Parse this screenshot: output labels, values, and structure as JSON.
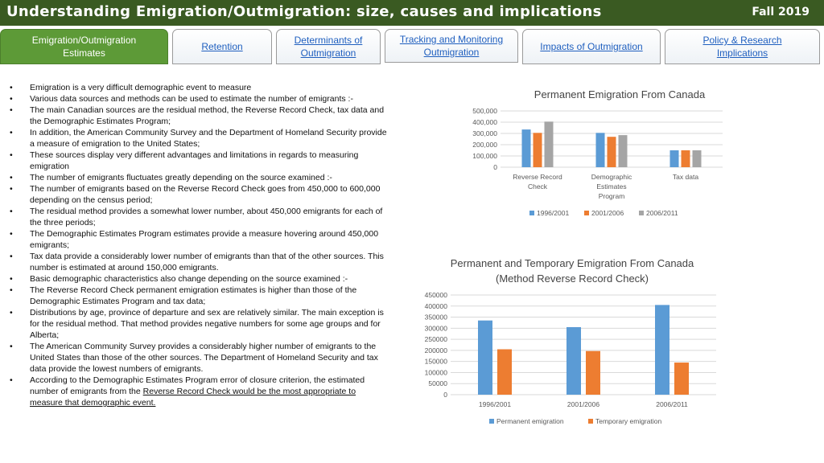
{
  "header": {
    "title": "Understanding Emigration/Outmigration: size, causes and implications",
    "term": "Fall 2019"
  },
  "tabs": [
    {
      "line1": "Emigration/Outmigration",
      "line2": "Estimates"
    },
    {
      "line1": "Retention",
      "line2": ""
    },
    {
      "line1": "Determinants of",
      "line2": "Outmigration"
    },
    {
      "line1": "Tracking and Monitoring",
      "line2": "Outmigration"
    },
    {
      "line1": "Impacts of Outmigration",
      "line2": ""
    },
    {
      "line1": "Policy & Research",
      "line2": "Implications"
    }
  ],
  "bullets": [
    "Emigration is a very difficult demographic event to measure",
    "Various data sources and methods can be used to estimate the number of emigrants :-",
    "The main Canadian sources are the residual method, the Reverse Record Check, tax data and the Demographic Estimates Program;",
    "In addition, the American Community Survey and the Department of Homeland Security provide a measure of emigration to the United States;",
    "These sources display very different advantages and limitations in regards to measuring emigration",
    "The number of emigrants fluctuates greatly depending on the source examined :-",
    "The number of emigrants based on the Reverse Record Check goes from 450,000 to 600,000 depending on the census period;",
    "The residual method provides a somewhat lower number, about 450,000 emigrants for each of the three periods;",
    "The Demographic Estimates Program estimates provide a measure hovering around 450,000 emigrants;",
    "Tax data provide a considerably lower number of emigrants than that of the other sources. This number is estimated at around 150,000 emigrants.",
    "Basic demographic characteristics also change depending on the source examined :-",
    "The Reverse Record Check permanent emigration estimates is higher than those of the Demographic Estimates Program and tax data;",
    "Distributions by age, province of departure and sex are relatively similar. The main exception is for the residual method. That method provides negative numbers for some age groups and for Alberta;",
    "The American Community Survey provides a considerably higher number of emigrants to the United States than those of the other sources. The Department of Homeland Security and tax data provide the lowest numbers of emigrants."
  ],
  "last_bullet": {
    "plain": "According to the Demographic Estimates Program error of closure criterion, the estimated number of emigrants from the ",
    "underlined": "Reverse Record Check would be the most appropriate to measure that demographic event."
  },
  "chart_data": [
    {
      "type": "bar",
      "title": "Permanent Emigration From Canada",
      "categories": [
        [
          "Reverse Record",
          "Check"
        ],
        [
          "Demographic",
          "Estimates",
          "Program"
        ],
        [
          "Tax data"
        ]
      ],
      "yticks": [
        "0",
        "100,000",
        "200,000",
        "300,000",
        "400,000",
        "500,000"
      ],
      "ylim": [
        0,
        500000
      ],
      "series": [
        {
          "name": "1996/2001",
          "color": "#5b9bd5",
          "values": [
            335000,
            305000,
            150000
          ]
        },
        {
          "name": "2001/2006",
          "color": "#ed7d31",
          "values": [
            305000,
            270000,
            150000
          ]
        },
        {
          "name": "2006/2011",
          "color": "#a5a5a5",
          "values": [
            405000,
            285000,
            150000
          ]
        }
      ],
      "legend": "bottom",
      "grid": true
    },
    {
      "type": "bar",
      "title": "Permanent and Temporary Emigration From Canada (Method Reverse Record Check)",
      "categories": [
        "1996/2001",
        "2001/2006",
        "2006/2011"
      ],
      "yticks": [
        "0",
        "50000",
        "100000",
        "150000",
        "200000",
        "250000",
        "300000",
        "350000",
        "400000",
        "450000"
      ],
      "ylim": [
        0,
        450000
      ],
      "series": [
        {
          "name": "Permanent emigration",
          "color": "#5b9bd5",
          "values": [
            335000,
            305000,
            405000
          ]
        },
        {
          "name": "Temporary emigration",
          "color": "#ed7d31",
          "values": [
            205000,
            197000,
            145000
          ]
        }
      ],
      "legend": "bottom",
      "grid": true
    }
  ]
}
